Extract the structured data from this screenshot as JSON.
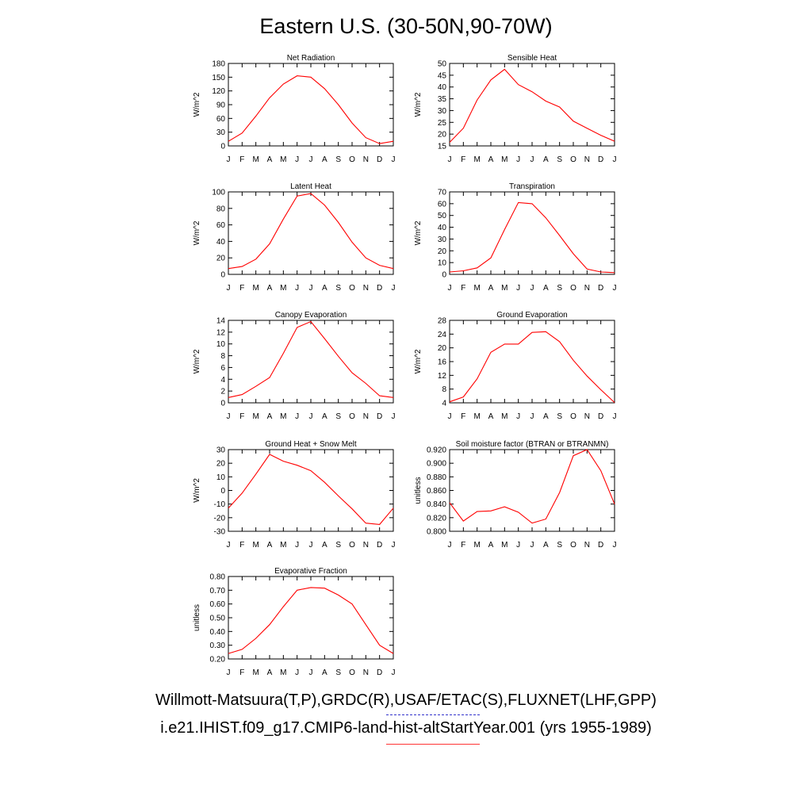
{
  "figure": {
    "title": "Eastern U.S. (30-50N,90-70W)",
    "legend_obs": "Willmott-Matsuura(T,P),GRDC(R),USAF/ETAC(S),FLUXNET(LHF,GPP)",
    "legend_model": "i.e21.IHIST.f09_g17.CMIP6-land-hist-altStartYear.001 (yrs 1955-1989)",
    "series_color": "#ff0000"
  },
  "chart_data": [
    {
      "type": "line",
      "title": "Net Radiation",
      "ylabel": "W/m^2",
      "categories": [
        "J",
        "F",
        "M",
        "A",
        "M",
        "J",
        "J",
        "A",
        "S",
        "O",
        "N",
        "D",
        "J"
      ],
      "ylim": [
        0,
        180
      ],
      "yticks": [
        "0",
        "30",
        "60",
        "90",
        "120",
        "150",
        "180"
      ],
      "series": [
        {
          "values": [
            10,
            28,
            65,
            105,
            135,
            153,
            150,
            125,
            90,
            50,
            18,
            5,
            10
          ]
        }
      ]
    },
    {
      "type": "line",
      "title": "Sensible Heat",
      "ylabel": "W/m^2",
      "categories": [
        "J",
        "F",
        "M",
        "A",
        "M",
        "J",
        "J",
        "A",
        "S",
        "O",
        "N",
        "D",
        "J"
      ],
      "ylim": [
        15,
        50
      ],
      "yticks": [
        "15",
        "20",
        "25",
        "30",
        "35",
        "40",
        "45",
        "50"
      ],
      "series": [
        {
          "values": [
            16.5,
            22.5,
            34.5,
            43,
            47.5,
            41,
            38,
            34,
            31.5,
            25.5,
            22.5,
            19.5,
            17
          ]
        }
      ]
    },
    {
      "type": "line",
      "title": "Latent Heat",
      "ylabel": "W/m^2",
      "categories": [
        "J",
        "F",
        "M",
        "A",
        "M",
        "J",
        "J",
        "A",
        "S",
        "O",
        "N",
        "D",
        "J"
      ],
      "ylim": [
        0,
        100
      ],
      "yticks": [
        "0",
        "20",
        "40",
        "60",
        "80",
        "100"
      ],
      "series": [
        {
          "values": [
            7,
            9.5,
            18.5,
            37,
            67,
            95,
            98,
            84,
            63,
            39,
            20,
            11,
            7
          ]
        }
      ]
    },
    {
      "type": "line",
      "title": "Transpiration",
      "ylabel": "W/m^2",
      "categories": [
        "J",
        "F",
        "M",
        "A",
        "M",
        "J",
        "J",
        "A",
        "S",
        "O",
        "N",
        "D",
        "J"
      ],
      "ylim": [
        0,
        70
      ],
      "yticks": [
        "0",
        "10",
        "20",
        "30",
        "40",
        "50",
        "60",
        "70"
      ],
      "series": [
        {
          "values": [
            2,
            3,
            5.5,
            14,
            38,
            61,
            60,
            48,
            33,
            17.5,
            4.5,
            2,
            1.5
          ]
        }
      ]
    },
    {
      "type": "line",
      "title": "Canopy Evaporation",
      "ylabel": "W/m^2",
      "categories": [
        "J",
        "F",
        "M",
        "A",
        "M",
        "J",
        "J",
        "A",
        "S",
        "O",
        "N",
        "D",
        "J"
      ],
      "ylim": [
        0,
        14
      ],
      "yticks": [
        "0",
        "2",
        "4",
        "6",
        "8",
        "10",
        "12",
        "14"
      ],
      "series": [
        {
          "values": [
            0.9,
            1.4,
            2.8,
            4.3,
            8.4,
            12.8,
            13.8,
            10.9,
            7.9,
            5.1,
            3.3,
            1.2,
            0.9
          ]
        }
      ]
    },
    {
      "type": "line",
      "title": "Ground Evaporation",
      "ylabel": "W/m^2",
      "categories": [
        "J",
        "F",
        "M",
        "A",
        "M",
        "J",
        "J",
        "A",
        "S",
        "O",
        "N",
        "D",
        "J"
      ],
      "ylim": [
        4,
        28
      ],
      "yticks": [
        "4",
        "8",
        "12",
        "16",
        "20",
        "24",
        "28"
      ],
      "series": [
        {
          "values": [
            4.3,
            5.7,
            11,
            18.7,
            21.1,
            21.1,
            24.5,
            24.7,
            21.8,
            16.4,
            11.8,
            7.8,
            4.1
          ]
        }
      ]
    },
    {
      "type": "line",
      "title": "Ground Heat + Snow Melt",
      "ylabel": "W/m^2",
      "categories": [
        "J",
        "F",
        "M",
        "A",
        "M",
        "J",
        "J",
        "A",
        "S",
        "O",
        "N",
        "D",
        "J"
      ],
      "ylim": [
        -30,
        30
      ],
      "yticks": [
        "-30",
        "-20",
        "-10",
        "0",
        "10",
        "20",
        "30"
      ],
      "series": [
        {
          "values": [
            -13,
            -2,
            12,
            26.5,
            21.5,
            18.5,
            14.5,
            6,
            -4,
            -13.5,
            -24,
            -25,
            -13
          ]
        }
      ]
    },
    {
      "type": "line",
      "title": "Soil moisture factor (BTRAN or BTRANMN)",
      "ylabel": "unitless",
      "categories": [
        "J",
        "F",
        "M",
        "A",
        "M",
        "J",
        "J",
        "A",
        "S",
        "O",
        "N",
        "D",
        "J"
      ],
      "ylim": [
        0.8,
        0.92
      ],
      "yticks": [
        "0.800",
        "0.820",
        "0.840",
        "0.860",
        "0.880",
        "0.900",
        "0.920"
      ],
      "series": [
        {
          "values": [
            0.842,
            0.815,
            0.829,
            0.83,
            0.836,
            0.828,
            0.812,
            0.818,
            0.857,
            0.911,
            0.92,
            0.889,
            0.84
          ]
        }
      ]
    },
    {
      "type": "line",
      "title": "Evaporative Fraction",
      "ylabel": "unitless",
      "categories": [
        "J",
        "F",
        "M",
        "A",
        "M",
        "J",
        "J",
        "A",
        "S",
        "O",
        "N",
        "D",
        "J"
      ],
      "ylim": [
        0.2,
        0.8
      ],
      "yticks": [
        "0.20",
        "0.30",
        "0.40",
        "0.50",
        "0.60",
        "0.70",
        "0.80"
      ],
      "series": [
        {
          "values": [
            0.24,
            0.27,
            0.35,
            0.45,
            0.58,
            0.7,
            0.72,
            0.715,
            0.665,
            0.6,
            0.45,
            0.3,
            0.24
          ]
        }
      ]
    }
  ]
}
